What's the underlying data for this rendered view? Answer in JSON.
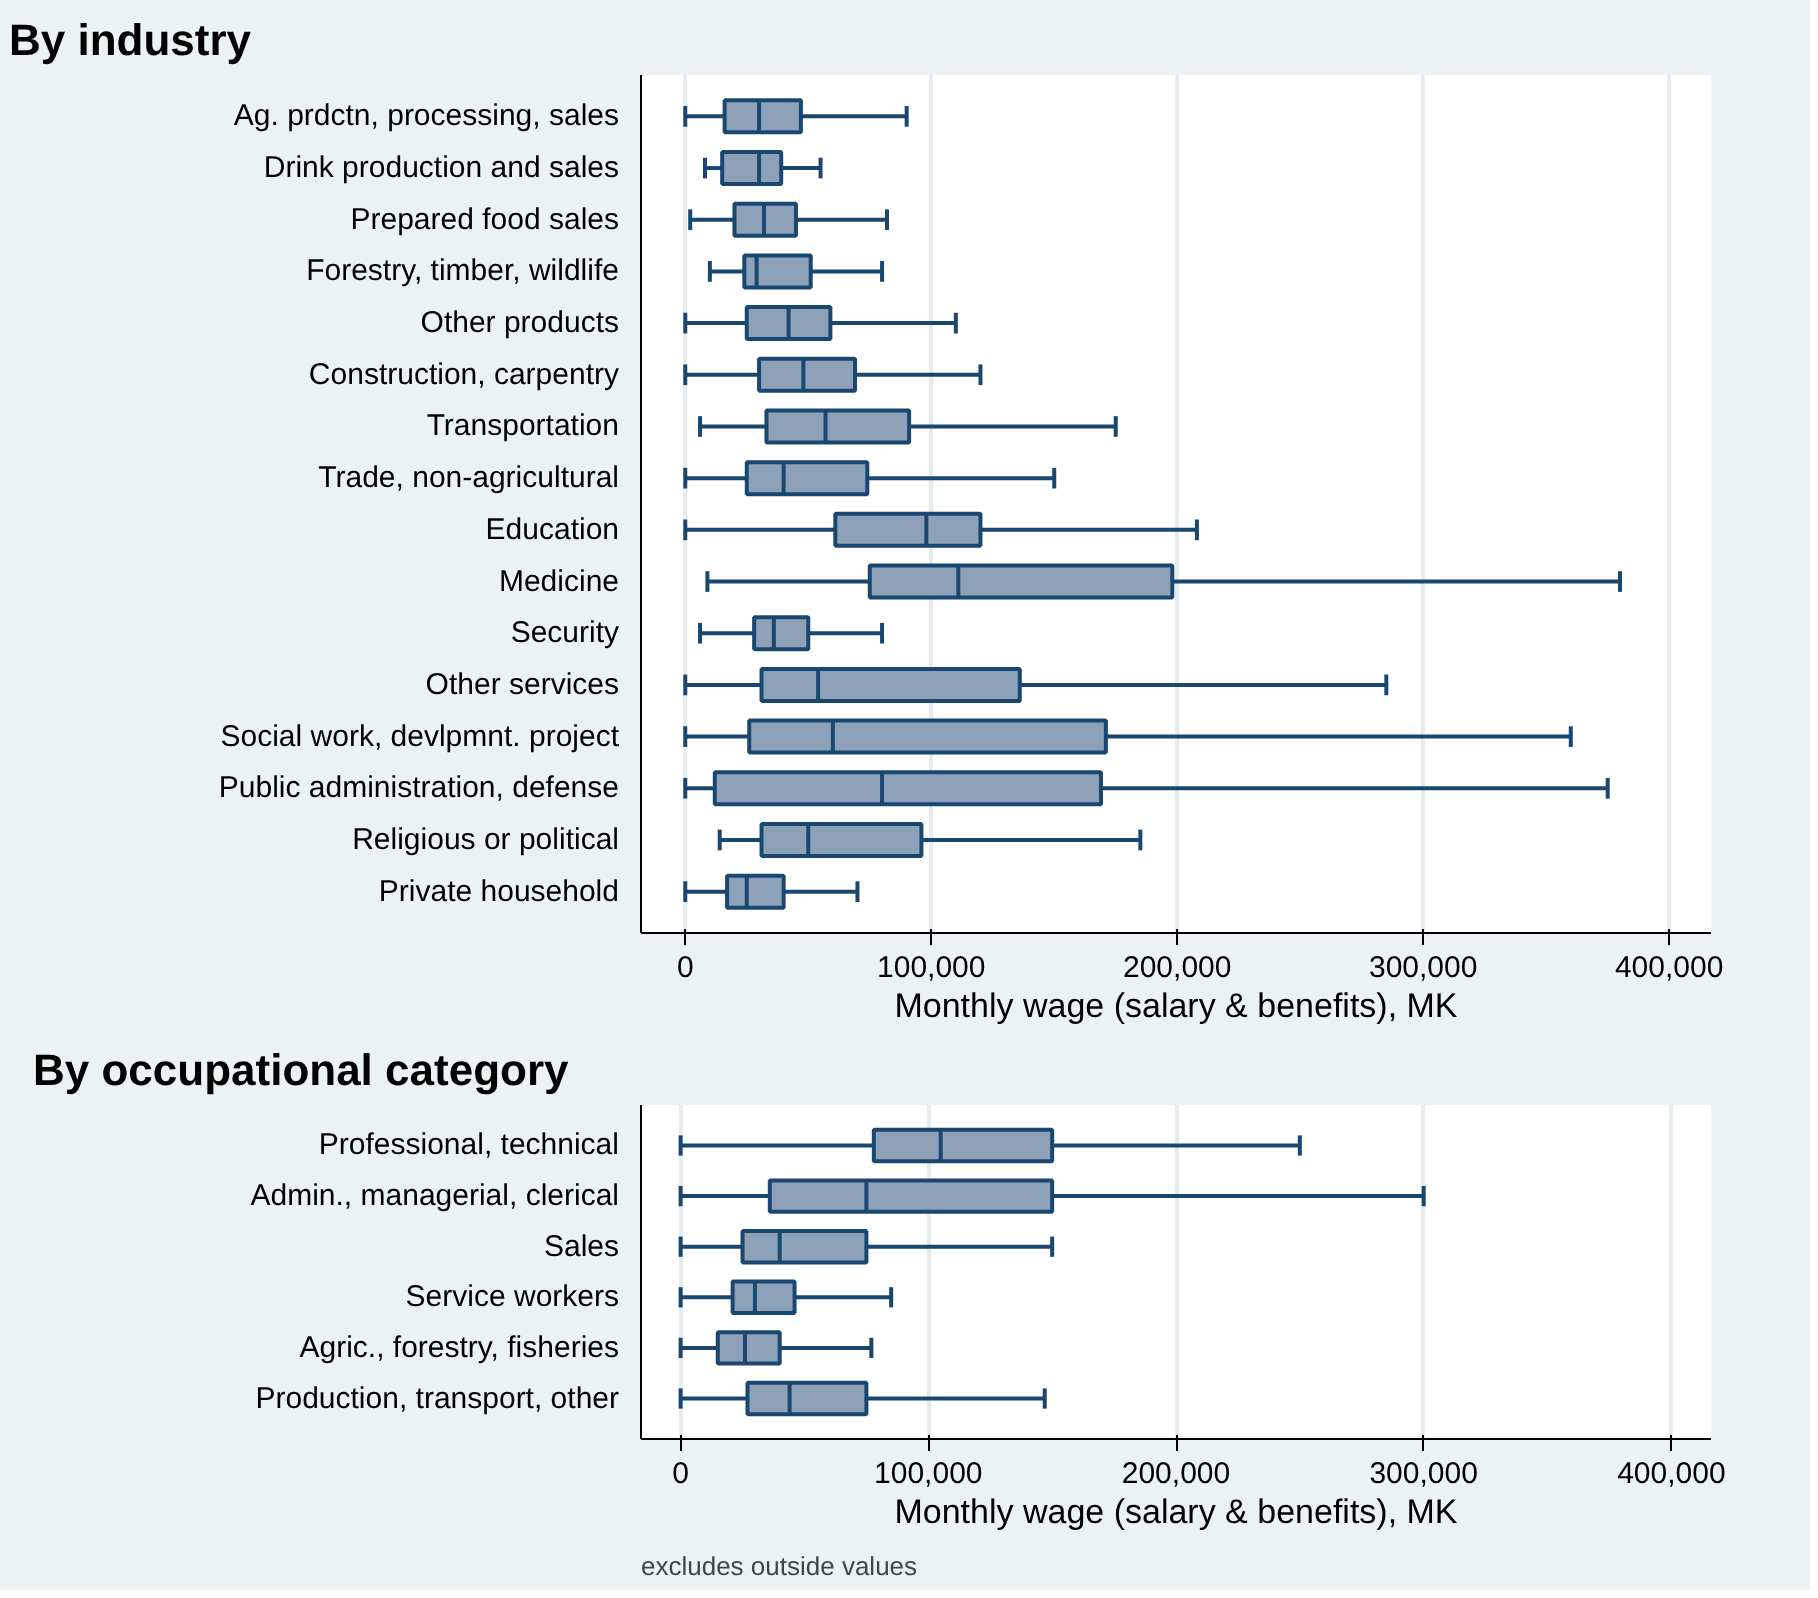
{
  "chart_data": [
    {
      "type": "box",
      "title": "By industry",
      "xlabel": "Monthly wage (salary & benefits), MK",
      "orientation": "horizontal",
      "grid": "x",
      "color": "#8da2b8",
      "categories": [
        "Ag. prdctn, processing, sales",
        "Drink production and sales",
        "Prepared food sales",
        "Forestry, timber, wildlife",
        "Other products",
        "Construction, carpentry",
        "Transportation",
        "Trade, non-agricultural",
        "Education",
        "Medicine",
        "Security",
        "Other services",
        "Social work, devlpmnt. project",
        "Public administration, defense",
        "Religious or political",
        "Private household"
      ],
      "boxes": [
        {
          "low": 0,
          "q1": 16000,
          "median": 30000,
          "q3": 47000,
          "high": 90000
        },
        {
          "low": 8000,
          "q1": 15000,
          "median": 30000,
          "q3": 39000,
          "high": 55000
        },
        {
          "low": 2000,
          "q1": 20000,
          "median": 32000,
          "q3": 45000,
          "high": 82000
        },
        {
          "low": 10000,
          "q1": 24000,
          "median": 29000,
          "q3": 51000,
          "high": 80000
        },
        {
          "low": 0,
          "q1": 25000,
          "median": 42000,
          "q3": 59000,
          "high": 110000
        },
        {
          "low": 0,
          "q1": 30000,
          "median": 48000,
          "q3": 69000,
          "high": 120000
        },
        {
          "low": 6000,
          "q1": 33000,
          "median": 57000,
          "q3": 91000,
          "high": 175000
        },
        {
          "low": 0,
          "q1": 25000,
          "median": 40000,
          "q3": 74000,
          "high": 150000
        },
        {
          "low": 0,
          "q1": 61000,
          "median": 98000,
          "q3": 120000,
          "high": 208000
        },
        {
          "low": 9000,
          "q1": 75000,
          "median": 111000,
          "q3": 198000,
          "high": 380000
        },
        {
          "low": 6000,
          "q1": 28000,
          "median": 36000,
          "q3": 50000,
          "high": 80000
        },
        {
          "low": 0,
          "q1": 31000,
          "median": 54000,
          "q3": 136000,
          "high": 285000
        },
        {
          "low": 0,
          "q1": 26000,
          "median": 60000,
          "q3": 171000,
          "high": 360000
        },
        {
          "low": 0,
          "q1": 12000,
          "median": 80000,
          "q3": 169000,
          "high": 375000
        },
        {
          "low": 14000,
          "q1": 31000,
          "median": 50000,
          "q3": 96000,
          "high": 185000
        },
        {
          "low": 0,
          "q1": 17000,
          "median": 25000,
          "q3": 40000,
          "high": 70000
        }
      ],
      "xlim": [
        -18000,
        417000
      ],
      "xticks": [
        {
          "value": 0,
          "label": "0"
        },
        {
          "value": 100000,
          "label": "100,000"
        },
        {
          "value": 200000,
          "label": "200,000"
        },
        {
          "value": 300000,
          "label": "300,000"
        },
        {
          "value": 400000,
          "label": "400,000"
        }
      ]
    },
    {
      "type": "box",
      "title": "By occupational category",
      "xlabel": "Monthly wage (salary & benefits), MK",
      "orientation": "horizontal",
      "grid": "x",
      "color": "#8da2b8",
      "categories": [
        "Professional, technical",
        "Admin., managerial, clerical",
        "Sales",
        "Service workers",
        "Agric., forestry, fisheries",
        "Production, transport, other"
      ],
      "boxes": [
        {
          "low": 0,
          "q1": 78000,
          "median": 105000,
          "q3": 150000,
          "high": 250000
        },
        {
          "low": 0,
          "q1": 36000,
          "median": 75000,
          "q3": 150000,
          "high": 300000
        },
        {
          "low": 0,
          "q1": 25000,
          "median": 40000,
          "q3": 75000,
          "high": 150000
        },
        {
          "low": 0,
          "q1": 21000,
          "median": 30000,
          "q3": 46000,
          "high": 85000
        },
        {
          "low": 0,
          "q1": 15000,
          "median": 26000,
          "q3": 40000,
          "high": 77000
        },
        {
          "low": 0,
          "q1": 27000,
          "median": 44000,
          "q3": 75000,
          "high": 147000
        }
      ],
      "xlim": [
        -16000,
        416000
      ],
      "xticks": [
        {
          "value": 0,
          "label": "0"
        },
        {
          "value": 100000,
          "label": "100,000"
        },
        {
          "value": 200000,
          "label": "200,000"
        },
        {
          "value": 300000,
          "label": "300,000"
        },
        {
          "value": 400000,
          "label": "400,000"
        }
      ],
      "annotations": [
        "excludes outside values"
      ]
    }
  ]
}
